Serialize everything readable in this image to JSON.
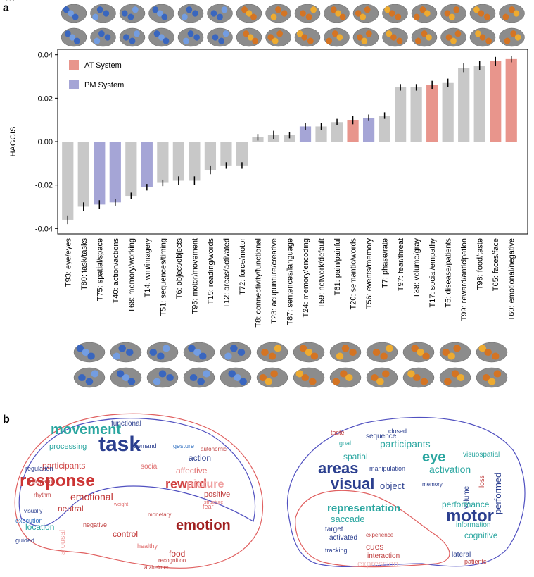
{
  "panel_labels": [
    "a",
    "b"
  ],
  "chart_data": {
    "type": "bar",
    "ylabel": "HAGGIS",
    "categories": [
      "T93: eye/eyes",
      "T80: task/tasks",
      "T75: spatial/space",
      "T40: action/actions",
      "T68: memory/working",
      "T14: wm/imagery",
      "T51: sequences/timing",
      "T6: object/objects",
      "T95: motor/movement",
      "T15: reading/words",
      "T12: areas/activated",
      "T72: force/motor",
      "T8: connectivity/functional",
      "T23: acupunture/creative",
      "T87: sentences/language",
      "T24: memory/encoding",
      "T59: network/default",
      "T61: pain/painful",
      "T20: semantic/words",
      "T56: events/memory",
      "T7: phase/rate",
      "T97: fear/threat",
      "T38: volume/gray",
      "T17: social/empathy",
      "T5: disease/patients",
      "T99: reward/anticipation",
      "T98: food/taste",
      "T65: faces/face",
      "T60: emotional/negative"
    ],
    "values": [
      -0.036,
      -0.03,
      -0.029,
      -0.028,
      -0.025,
      -0.021,
      -0.019,
      -0.018,
      -0.018,
      -0.013,
      -0.011,
      -0.011,
      0.002,
      0.003,
      0.003,
      0.007,
      0.007,
      0.009,
      0.01,
      0.011,
      0.012,
      0.025,
      0.025,
      0.026,
      0.027,
      0.034,
      0.035,
      0.037,
      0.038
    ],
    "errors": [
      0.002,
      0.002,
      0.002,
      0.0015,
      0.0015,
      0.0015,
      0.0015,
      0.002,
      0.002,
      0.002,
      0.0015,
      0.0015,
      0.0015,
      0.002,
      0.0015,
      0.0015,
      0.0015,
      0.0015,
      0.002,
      0.0015,
      0.0015,
      0.0015,
      0.0015,
      0.002,
      0.002,
      0.002,
      0.002,
      0.002,
      0.0015
    ],
    "bar_colors": [
      "#c8c8c8",
      "#c8c8c8",
      "#a5a5d6",
      "#a5a5d6",
      "#c8c8c8",
      "#a5a5d6",
      "#c8c8c8",
      "#c8c8c8",
      "#c8c8c8",
      "#c8c8c8",
      "#c8c8c8",
      "#c8c8c8",
      "#c8c8c8",
      "#c8c8c8",
      "#c8c8c8",
      "#a5a5d6",
      "#c8c8c8",
      "#c8c8c8",
      "#e8958c",
      "#a5a5d6",
      "#c8c8c8",
      "#c8c8c8",
      "#c8c8c8",
      "#e8958c",
      "#c8c8c8",
      "#c8c8c8",
      "#c8c8c8",
      "#e8958c",
      "#e8958c"
    ],
    "legend": [
      {
        "name": "AT System",
        "color": "#e8958c"
      },
      {
        "name": "PM System",
        "color": "#a5a5d6"
      }
    ],
    "ylim": [
      -0.0425,
      0.0425
    ],
    "yticks": [
      -0.04,
      -0.02,
      {
        "value": 0,
        "label": "0.00"
      },
      0.02,
      0.04
    ]
  },
  "wordclouds": {
    "left": [
      "task",
      "movement",
      "response",
      "emotion",
      "reward",
      "emotional",
      "picture",
      "participants",
      "neutral",
      "action",
      "affective",
      "processing",
      "location",
      "control",
      "arousal",
      "food",
      "positive",
      "social",
      "execution",
      "functional",
      "gesture",
      "negative",
      "regulation",
      "fear",
      "healthy",
      "demand",
      "visually",
      "guided",
      "rhythm",
      "anticipation",
      "weight",
      "monetary",
      "recognition",
      "alzheimer",
      "structure",
      "autonomic",
      "happy"
    ],
    "right": [
      "areas",
      "visual",
      "motor",
      "eye",
      "participants",
      "activation",
      "spatial",
      "representation",
      "object",
      "saccade",
      "performed",
      "volume",
      "cognitive",
      "information",
      "performance",
      "target",
      "activated",
      "cues",
      "interaction",
      "expression",
      "lateral",
      "patients",
      "sequence",
      "goal",
      "closed",
      "manipulation",
      "visuospatial",
      "tracking",
      "taste",
      "memory",
      "loss",
      "experience"
    ]
  }
}
